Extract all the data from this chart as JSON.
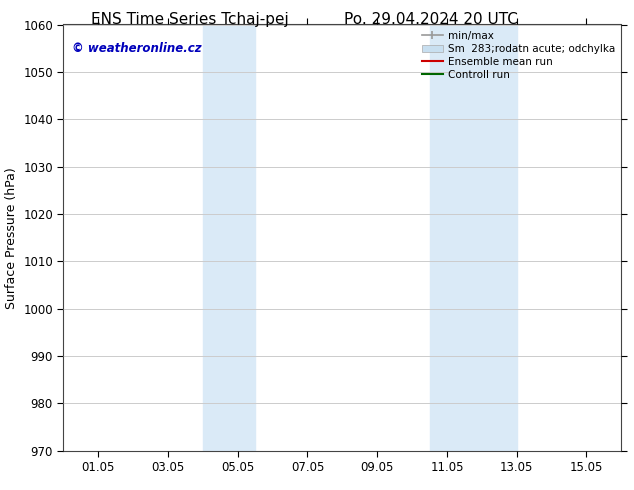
{
  "title_left": "ENS Time Series Tchaj-pej",
  "title_right": "Po. 29.04.2024 20 UTC",
  "ylabel": "Surface Pressure (hPa)",
  "ylim": [
    970,
    1060
  ],
  "yticks": [
    970,
    980,
    990,
    1000,
    1010,
    1020,
    1030,
    1040,
    1050,
    1060
  ],
  "xlim": [
    0,
    16
  ],
  "xtick_labels": [
    "01.05",
    "03.05",
    "05.05",
    "07.05",
    "09.05",
    "11.05",
    "13.05",
    "15.05"
  ],
  "xtick_positions": [
    1,
    3,
    5,
    7,
    9,
    11,
    13,
    15
  ],
  "shaded_bands": [
    {
      "x_start": 4.0,
      "x_end": 5.5,
      "color": "#daeaf7"
    },
    {
      "x_start": 10.5,
      "x_end": 13.0,
      "color": "#daeaf7"
    }
  ],
  "watermark_text": "© weatheronline.cz",
  "watermark_color": "#0000bb",
  "legend_entries": [
    {
      "label": "min/max",
      "color": "#999999",
      "lw": 1.2,
      "style": "minmax"
    },
    {
      "label": "Sm  283;rodatn acute; odchylka",
      "color": "#c8dff0",
      "lw": 6,
      "style": "band"
    },
    {
      "label": "Ensemble mean run",
      "color": "#cc0000",
      "lw": 1.5,
      "style": "line"
    },
    {
      "label": "Controll run",
      "color": "#006600",
      "lw": 1.5,
      "style": "line"
    }
  ],
  "bg_color": "#ffffff",
  "grid_color": "#cccccc",
  "title_fontsize": 11,
  "axis_fontsize": 8.5,
  "ylabel_fontsize": 9,
  "legend_fontsize": 7.5
}
